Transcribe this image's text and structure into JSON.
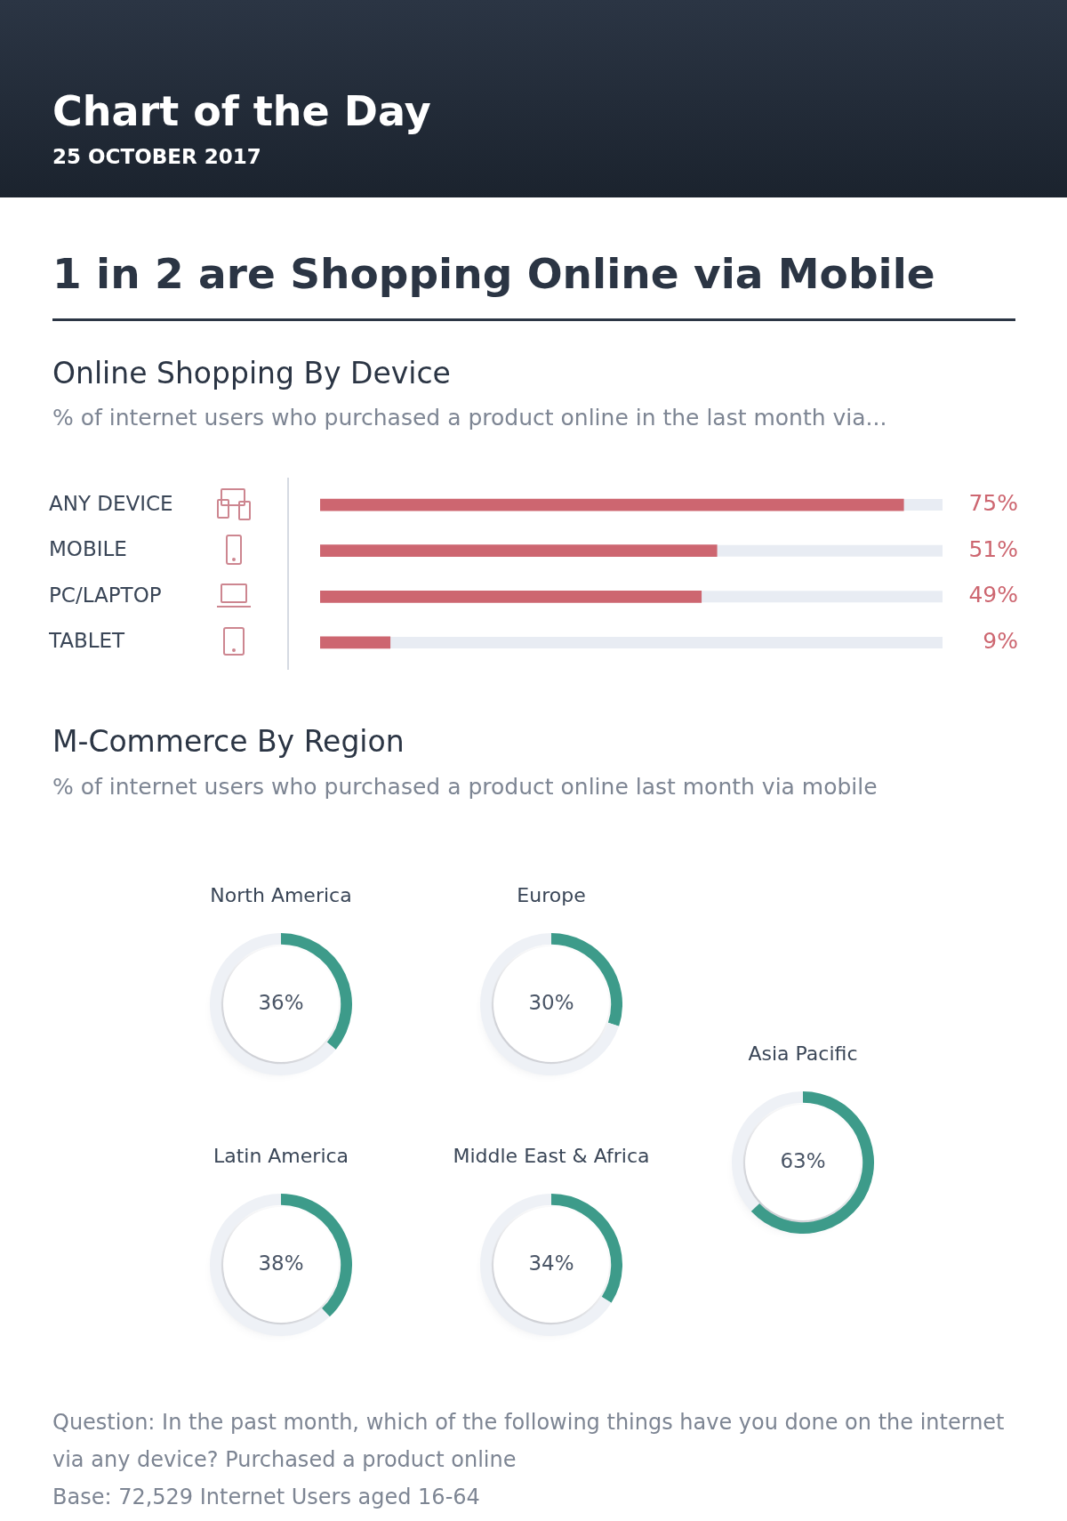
{
  "chart_data": [
    {
      "type": "other",
      "title": "Chart of the Day",
      "subtitle": "25 OCTOBER 2017",
      "annotations": [
        "1 in 2 are Shopping Online via Mobile"
      ]
    },
    {
      "type": "bar",
      "orientation": "horizontal",
      "title": "Online Shopping By Device",
      "subtitle": "% of internet users who purchased a product online in the last month via...",
      "categories": [
        "ANY DEVICE",
        "MOBILE",
        "PC/LAPTOP",
        "TABLET"
      ],
      "values": [
        75,
        51,
        49,
        9
      ],
      "value_labels": [
        "75%",
        "51%",
        "49%",
        "9%"
      ],
      "color": "#cd6670",
      "xlim": [
        0,
        80
      ],
      "tick_labels": "y"
    },
    {
      "type": "other",
      "title": "M-Commerce By Region",
      "subtitle": "% of internet users who purchased a product online last month via mobile"
    },
    {
      "type": "donut",
      "title": "North America",
      "categories": [
        null,
        null
      ],
      "values": [
        36,
        64
      ],
      "colors": [
        "#3d9b8a",
        "#eef1f6"
      ],
      "value_labels": [
        "36%",
        null
      ]
    },
    {
      "type": "donut",
      "title": "Europe",
      "categories": [
        null,
        null
      ],
      "values": [
        30,
        70
      ],
      "colors": [
        "#3d9b8a",
        "#eef1f6"
      ],
      "value_labels": [
        "30%",
        null
      ]
    },
    {
      "type": "donut",
      "title": "Asia Pacific",
      "categories": [
        null,
        null
      ],
      "values": [
        63,
        37
      ],
      "colors": [
        "#3d9b8a",
        "#eef1f6"
      ],
      "value_labels": [
        "63%",
        null
      ]
    },
    {
      "type": "donut",
      "title": "Latin America",
      "categories": [
        null,
        null
      ],
      "values": [
        38,
        62
      ],
      "colors": [
        "#3d9b8a",
        "#eef1f6"
      ],
      "value_labels": [
        "38%",
        null
      ]
    },
    {
      "type": "donut",
      "title": "Middle East & Africa",
      "categories": [
        null,
        null
      ],
      "values": [
        34,
        66
      ],
      "colors": [
        "#3d9b8a",
        "#eef1f6"
      ],
      "value_labels": [
        "34%",
        null
      ]
    },
    {
      "type": "other",
      "annotations": [
        "Question: In the past month, which of the following things have you done on the internet via any device? Purchased a product online",
        "Base: 72,529 Internet Users aged 16-64"
      ]
    }
  ]
}
